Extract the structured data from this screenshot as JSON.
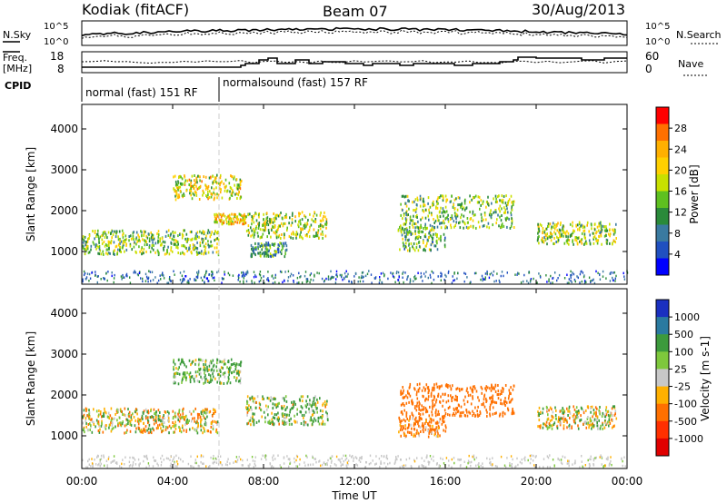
{
  "header": {
    "station": "Kodiak (fitACF)",
    "beam": "Beam 07",
    "date": "30/Aug/2013"
  },
  "top_panels": {
    "nsky_label": "N.Sky",
    "nsearch_label": "N.Search",
    "nsky_ticks": [
      "10^5",
      "10^0"
    ],
    "nsearch_ticks": [
      "10^5",
      "10^0"
    ],
    "freq_label_line1": "Freq.",
    "freq_label_line2": "[MHz]",
    "freq_ticks": [
      "18",
      "8"
    ],
    "nave_label": "Nave",
    "nave_ticks": [
      "60",
      "0"
    ],
    "cpid_label": "CPID",
    "cpid_segments": [
      {
        "text": "normal (fast) 151 RF",
        "start_hour": 0,
        "end_hour": 6
      },
      {
        "text": "normalsound (fast) 157 RF",
        "start_hour": 6,
        "end_hour": 24
      }
    ]
  },
  "axes": {
    "xlabel": "Time UT",
    "ylabel": "Slant Range [km]",
    "x_ticks": [
      "00:00",
      "04:00",
      "08:00",
      "12:00",
      "16:00",
      "20:00",
      "00:00"
    ],
    "y_ticks": [
      "1000",
      "2000",
      "3000",
      "4000"
    ]
  },
  "colorbars": {
    "power_label": "Power [dB]",
    "power_ticks": [
      "28",
      "24",
      "20",
      "16",
      "12",
      "8",
      "4"
    ],
    "power_colors": [
      "#ff0000",
      "#ff7000",
      "#ffb000",
      "#ffd000",
      "#c8e000",
      "#5ec020",
      "#2a8a3a",
      "#3a7aa0",
      "#2050c0",
      "#0000ff"
    ],
    "velocity_label": "Velocity [m s-1]",
    "velocity_ticks": [
      "1000",
      "500",
      "100",
      "25",
      "-25",
      "-100",
      "-500",
      "-1000"
    ],
    "velocity_colors": [
      "#1a30c0",
      "#2a7aa0",
      "#3c9a3c",
      "#7ec83c",
      "#c8c8c8",
      "#ffb000",
      "#ff7000",
      "#ff3000",
      "#e00000"
    ]
  },
  "chart_data": [
    {
      "type": "heatmap",
      "title": "Power",
      "xlabel": "Time UT",
      "ylabel": "Slant Range [km]",
      "xlim": [
        0,
        24
      ],
      "ylim": [
        200,
        4600
      ],
      "colorbar": "Power [dB]",
      "colorbar_range": [
        0,
        30
      ],
      "regions": [
        {
          "t": [
            0.0,
            6.0
          ],
          "range": [
            950,
            1550
          ],
          "value": 14
        },
        {
          "t": [
            4.0,
            7.0
          ],
          "range": [
            2300,
            2900
          ],
          "value": 18
        },
        {
          "t": [
            5.8,
            7.2
          ],
          "range": [
            1700,
            1950
          ],
          "value": 20
        },
        {
          "t": [
            7.2,
            10.8
          ],
          "range": [
            1350,
            2000
          ],
          "value": 16
        },
        {
          "t": [
            7.4,
            9.0
          ],
          "range": [
            900,
            1250
          ],
          "value": 10
        },
        {
          "t": [
            13.9,
            16.0
          ],
          "range": [
            1050,
            1650
          ],
          "value": 12
        },
        {
          "t": [
            14.0,
            19.0
          ],
          "range": [
            1600,
            2400
          ],
          "value": 14
        },
        {
          "t": [
            20.0,
            23.5
          ],
          "range": [
            1200,
            1750
          ],
          "value": 15
        }
      ]
    },
    {
      "type": "heatmap",
      "title": "Velocity",
      "xlabel": "Time UT",
      "ylabel": "Slant Range [km]",
      "xlim": [
        0,
        24
      ],
      "ylim": [
        200,
        4600
      ],
      "colorbar": "Velocity [m s-1]",
      "colorbar_range": [
        -1000,
        1000
      ],
      "regions": [
        {
          "t": [
            0.0,
            6.0
          ],
          "range": [
            1100,
            1700
          ],
          "value": 0
        },
        {
          "t": [
            4.0,
            7.0
          ],
          "range": [
            2300,
            2900
          ],
          "value": 150
        },
        {
          "t": [
            7.2,
            10.8
          ],
          "range": [
            1300,
            2000
          ],
          "value": 80
        },
        {
          "t": [
            14.0,
            19.0
          ],
          "range": [
            1500,
            2300
          ],
          "value": -300
        },
        {
          "t": [
            13.9,
            16.0
          ],
          "range": [
            1000,
            1500
          ],
          "value": -200
        },
        {
          "t": [
            20.0,
            23.5
          ],
          "range": [
            1200,
            1750
          ],
          "value": 0
        }
      ]
    }
  ]
}
